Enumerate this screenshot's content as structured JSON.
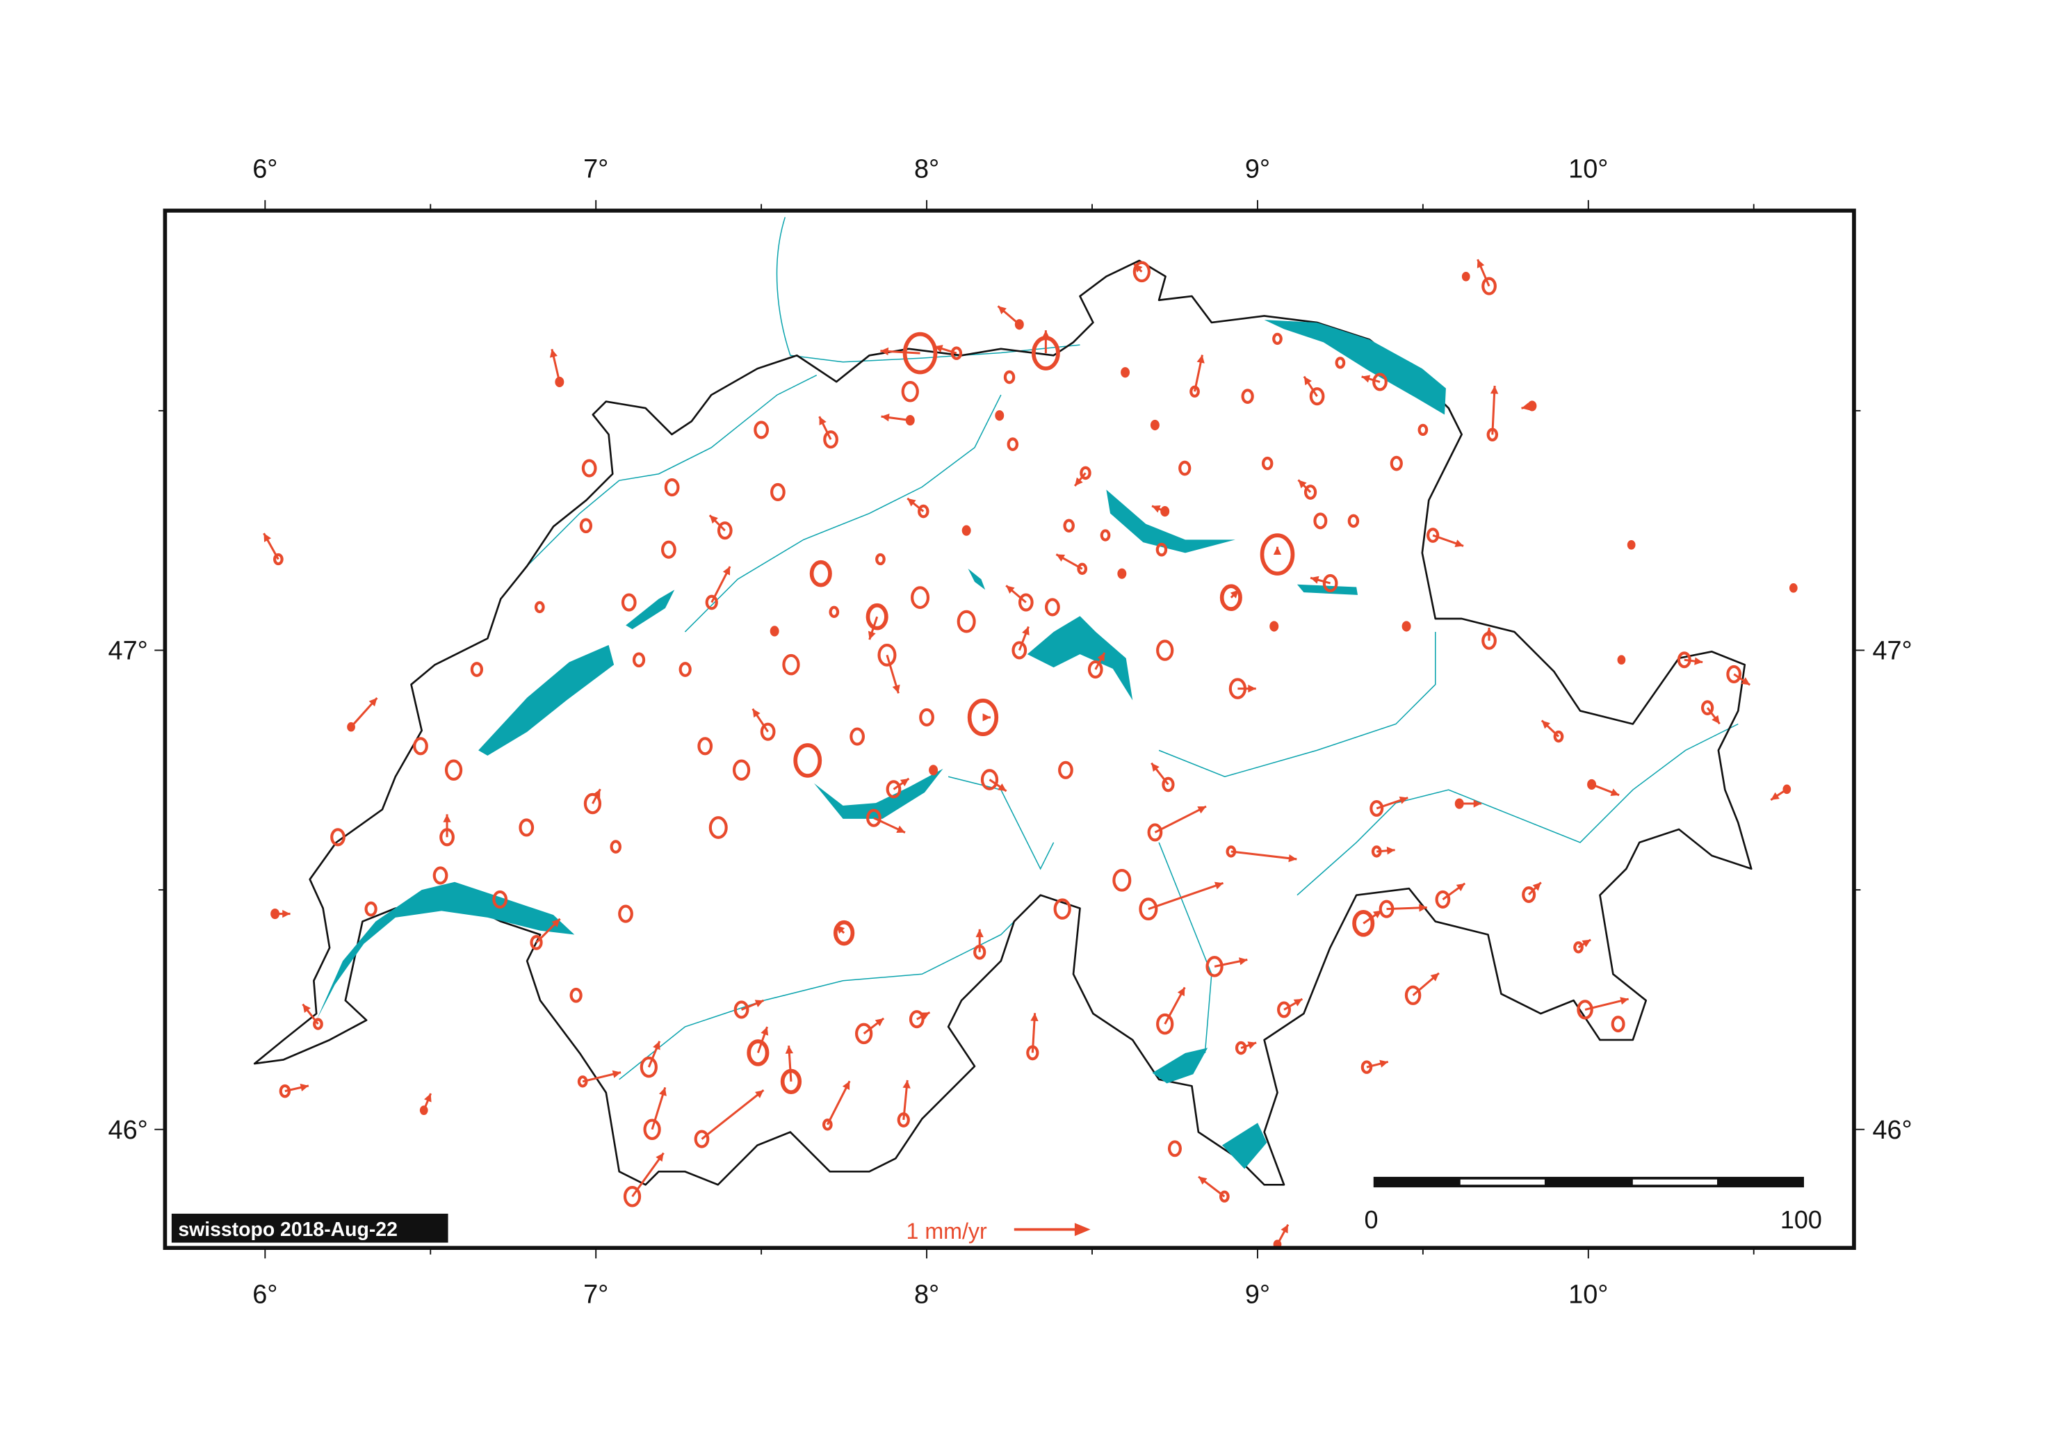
{
  "colors": {
    "station": "#e84a2c",
    "water": "#0aa3ad",
    "border": "#111111",
    "frame": "#111111"
  },
  "axes": {
    "lon_ticks": [
      {
        "value": 6,
        "label": "6°"
      },
      {
        "value": 7,
        "label": "7°"
      },
      {
        "value": 8,
        "label": "8°"
      },
      {
        "value": 9,
        "label": "9°"
      },
      {
        "value": 10,
        "label": "10°"
      }
    ],
    "lat_ticks": [
      {
        "value": 46,
        "label": "46°"
      },
      {
        "value": 47,
        "label": "47°"
      }
    ],
    "minor_lon": [
      5.5,
      6.5,
      7.5,
      8.5,
      9.5,
      10.5
    ],
    "minor_lat": [
      46.5,
      47.5
    ]
  },
  "credit": "swisstopo 2018-Aug-22",
  "legend": {
    "label": "1 mm/yr",
    "reference_velocity": 1
  },
  "scale_bar": {
    "start_label": "0",
    "end_label": "100",
    "unit_km": 100
  },
  "chart_data": {
    "type": "scatter",
    "description_type": "velocity vectors with error circles",
    "stations": [
      [
        7.98,
        47.62,
        -0.52,
        0.03,
        0.25
      ],
      [
        8.36,
        47.62,
        0,
        0.3,
        0.2
      ],
      [
        8.65,
        47.79,
        -0.1,
        0.1,
        0.12
      ],
      [
        9.7,
        47.76,
        -0.15,
        0.35,
        0.1
      ],
      [
        9.06,
        47.2,
        0,
        0.1,
        0.25
      ],
      [
        8.92,
        47.11,
        0.1,
        0.1,
        0.15
      ],
      [
        8.17,
        46.86,
        0.1,
        0,
        0.22
      ],
      [
        7.64,
        46.77,
        0,
        0,
        0.2
      ],
      [
        7.68,
        47.16,
        0,
        0,
        0.15
      ],
      [
        7.85,
        47.07,
        -0.1,
        -0.3,
        0.15
      ],
      [
        7.98,
        47.11,
        0,
        0,
        0.13
      ],
      [
        8.12,
        47.06,
        0,
        0,
        0.13
      ],
      [
        7.88,
        46.99,
        0.15,
        -0.5,
        0.13
      ],
      [
        7.59,
        46.97,
        0,
        0,
        0.12
      ],
      [
        7.27,
        46.96,
        0,
        0,
        0.08
      ],
      [
        7.13,
        46.98,
        0,
        0,
        0.08
      ],
      [
        7.1,
        47.1,
        0,
        0,
        0.1
      ],
      [
        7.22,
        47.21,
        0,
        0,
        0.1
      ],
      [
        7.39,
        47.25,
        -0.2,
        0.2,
        0.1
      ],
      [
        6.97,
        47.26,
        0,
        0,
        0.08
      ],
      [
        6.98,
        47.38,
        0,
        0,
        0.1
      ],
      [
        7.23,
        47.34,
        0,
        0,
        0.1
      ],
      [
        7.55,
        47.33,
        0,
        0,
        0.1
      ],
      [
        7.5,
        47.46,
        0,
        0,
        0.1
      ],
      [
        7.71,
        47.44,
        -0.15,
        0.3,
        0.1
      ],
      [
        6.89,
        47.56,
        -0.1,
        0.43,
        0.05
      ],
      [
        6.04,
        47.19,
        -0.19,
        0.34,
        0.06
      ],
      [
        6.26,
        46.84,
        0.34,
        0.38,
        0.04
      ],
      [
        6.64,
        46.96,
        0,
        0,
        0.08
      ],
      [
        6.47,
        46.8,
        0,
        0,
        0.1
      ],
      [
        6.57,
        46.75,
        0,
        0,
        0.12
      ],
      [
        6.22,
        46.61,
        0,
        0,
        0.1
      ],
      [
        6.55,
        46.61,
        0,
        0.3,
        0.1
      ],
      [
        6.79,
        46.63,
        0,
        0,
        0.1
      ],
      [
        6.99,
        46.68,
        0.1,
        0.19,
        0.12
      ],
      [
        7.06,
        46.59,
        0,
        0,
        0.07
      ],
      [
        7.37,
        46.63,
        0,
        0,
        0.13
      ],
      [
        7.33,
        46.8,
        0,
        0,
        0.1
      ],
      [
        7.44,
        46.75,
        0,
        0,
        0.12
      ],
      [
        7.52,
        46.83,
        -0.2,
        0.3,
        0.1
      ],
      [
        7.79,
        46.82,
        0,
        0,
        0.1
      ],
      [
        8.0,
        46.86,
        0,
        0,
        0.1
      ],
      [
        7.9,
        46.71,
        0.2,
        0.14,
        0.1
      ],
      [
        7.84,
        46.65,
        0.41,
        -0.19,
        0.1
      ],
      [
        8.19,
        46.73,
        0.22,
        -0.15,
        0.12
      ],
      [
        8.42,
        46.75,
        0,
        0,
        0.1
      ],
      [
        8.72,
        47.0,
        0,
        0,
        0.12
      ],
      [
        8.94,
        46.92,
        0.24,
        0,
        0.12
      ],
      [
        8.73,
        46.72,
        -0.22,
        0.28,
        0.08
      ],
      [
        8.69,
        46.62,
        0.67,
        0.34,
        0.1
      ],
      [
        8.92,
        46.58,
        0.86,
        -0.1,
        0.06
      ],
      [
        8.59,
        46.52,
        0,
        0,
        0.13
      ],
      [
        8.67,
        46.46,
        0.98,
        0.34,
        0.13
      ],
      [
        8.41,
        46.46,
        0,
        0,
        0.12
      ],
      [
        8.16,
        46.37,
        0,
        0.3,
        0.08
      ],
      [
        7.75,
        46.41,
        -0.1,
        0.1,
        0.14
      ],
      [
        7.49,
        46.16,
        0.12,
        0.34,
        0.15
      ],
      [
        7.59,
        46.1,
        -0.03,
        0.47,
        0.14
      ],
      [
        7.81,
        46.2,
        0.26,
        0.2,
        0.12
      ],
      [
        7.97,
        46.23,
        0.17,
        0.09,
        0.1
      ],
      [
        7.93,
        46.02,
        0.05,
        0.52,
        0.08
      ],
      [
        7.7,
        46.01,
        0.29,
        0.57,
        0.06
      ],
      [
        7.32,
        45.98,
        0.81,
        0.64,
        0.1
      ],
      [
        7.17,
        46.0,
        0.17,
        0.55,
        0.12
      ],
      [
        7.11,
        45.86,
        0.41,
        0.57,
        0.12
      ],
      [
        7.16,
        46.13,
        0.14,
        0.34,
        0.12
      ],
      [
        7.44,
        46.25,
        0.29,
        0.12,
        0.1
      ],
      [
        6.94,
        46.28,
        0,
        0,
        0.08
      ],
      [
        6.82,
        46.39,
        0.31,
        0.31,
        0.08
      ],
      [
        6.71,
        46.48,
        0,
        0,
        0.1
      ],
      [
        7.09,
        46.45,
        0,
        0,
        0.1
      ],
      [
        6.53,
        46.53,
        0,
        0,
        0.1
      ],
      [
        6.32,
        46.46,
        0,
        0,
        0.08
      ],
      [
        6.03,
        46.45,
        0.2,
        0,
        0.05
      ],
      [
        6.16,
        46.22,
        -0.2,
        0.26,
        0.06
      ],
      [
        6.06,
        46.08,
        0.31,
        0.07,
        0.07
      ],
      [
        6.96,
        46.1,
        0.5,
        0.12,
        0.06
      ],
      [
        8.32,
        46.16,
        0.03,
        0.52,
        0.08
      ],
      [
        8.72,
        46.22,
        0.26,
        0.48,
        0.12
      ],
      [
        8.87,
        46.34,
        0.43,
        0.09,
        0.12
      ],
      [
        8.95,
        46.17,
        0.2,
        0.07,
        0.07
      ],
      [
        8.75,
        45.96,
        0,
        0,
        0.09
      ],
      [
        8.9,
        45.86,
        -0.34,
        0.26,
        0.06
      ],
      [
        9.08,
        46.25,
        0.24,
        0.14,
        0.09
      ],
      [
        9.32,
        46.43,
        0.24,
        0.17,
        0.15
      ],
      [
        9.39,
        46.46,
        0.53,
        0.02,
        0.1
      ],
      [
        9.47,
        46.28,
        0.34,
        0.29,
        0.11
      ],
      [
        9.56,
        46.48,
        0.29,
        0.21,
        0.1
      ],
      [
        9.33,
        46.13,
        0.28,
        0.07,
        0.07
      ],
      [
        9.36,
        46.67,
        0.41,
        0.14,
        0.09
      ],
      [
        9.36,
        46.58,
        0.24,
        0.02,
        0.06
      ],
      [
        9.61,
        46.68,
        0.29,
        0,
        0.05
      ],
      [
        9.82,
        46.49,
        0.16,
        0.16,
        0.09
      ],
      [
        9.99,
        46.25,
        0.57,
        0.14,
        0.11
      ],
      [
        10.09,
        46.22,
        0,
        0,
        0.09
      ],
      [
        9.97,
        46.38,
        0.16,
        0.1,
        0.06
      ],
      [
        9.91,
        46.82,
        -0.22,
        0.21,
        0.06
      ],
      [
        10.01,
        46.72,
        0.36,
        -0.14,
        0.05
      ],
      [
        10.29,
        46.98,
        0.24,
        -0.03,
        0.09
      ],
      [
        10.44,
        46.95,
        0.21,
        -0.14,
        0.1
      ],
      [
        10.36,
        46.88,
        0.16,
        -0.21,
        0.08
      ],
      [
        10.6,
        46.71,
        -0.21,
        -0.14,
        0.04
      ],
      [
        10.1,
        46.98,
        0,
        0,
        0.04
      ],
      [
        9.7,
        47.02,
        0,
        0.17,
        0.1
      ],
      [
        9.53,
        47.24,
        0.4,
        -0.14,
        0.08
      ],
      [
        9.45,
        47.05,
        0,
        0,
        0.05
      ],
      [
        9.22,
        47.14,
        -0.26,
        0.07,
        0.1
      ],
      [
        9.05,
        47.05,
        0,
        0,
        0.05
      ],
      [
        9.29,
        47.27,
        0,
        0,
        0.07
      ],
      [
        9.19,
        47.27,
        0,
        0,
        0.09
      ],
      [
        9.16,
        47.33,
        -0.16,
        0.16,
        0.08
      ],
      [
        9.03,
        47.39,
        0,
        0,
        0.07
      ],
      [
        9.42,
        47.39,
        0,
        0,
        0.08
      ],
      [
        9.5,
        47.46,
        0,
        0,
        0.06
      ],
      [
        9.71,
        47.45,
        0.03,
        0.64,
        0.07
      ],
      [
        9.83,
        47.51,
        -0.14,
        -0.03,
        0.05
      ],
      [
        9.37,
        47.56,
        -0.24,
        0.07,
        0.1
      ],
      [
        9.18,
        47.53,
        -0.17,
        0.26,
        0.1
      ],
      [
        8.97,
        47.53,
        0,
        0,
        0.08
      ],
      [
        9.25,
        47.6,
        0,
        0,
        0.06
      ],
      [
        9.06,
        47.65,
        0,
        0,
        0.06
      ],
      [
        8.81,
        47.54,
        0.1,
        0.48,
        0.06
      ],
      [
        8.6,
        47.58,
        0,
        0,
        0.05
      ],
      [
        8.69,
        47.47,
        0,
        0,
        0.05
      ],
      [
        8.78,
        47.38,
        0,
        0,
        0.08
      ],
      [
        8.72,
        47.29,
        -0.17,
        0.07,
        0.05
      ],
      [
        8.71,
        47.21,
        0,
        0,
        0.07
      ],
      [
        8.59,
        47.16,
        0,
        0,
        0.05
      ],
      [
        8.54,
        47.24,
        0,
        0,
        0.06
      ],
      [
        8.43,
        47.26,
        0,
        0,
        0.07
      ],
      [
        8.47,
        47.17,
        -0.34,
        0.19,
        0.06
      ],
      [
        8.3,
        47.1,
        -0.26,
        0.22,
        0.1
      ],
      [
        8.38,
        47.09,
        0,
        0,
        0.1
      ],
      [
        8.28,
        47.0,
        0.12,
        0.31,
        0.1
      ],
      [
        8.51,
        46.96,
        0.12,
        0.22,
        0.1
      ],
      [
        8.09,
        47.62,
        -0.29,
        0.09,
        0.07
      ],
      [
        8.25,
        47.57,
        0,
        0,
        0.07
      ],
      [
        8.22,
        47.49,
        0,
        0,
        0.05
      ],
      [
        7.95,
        47.48,
        -0.38,
        0.05,
        0.05
      ],
      [
        8.26,
        47.43,
        0,
        0,
        0.07
      ],
      [
        8.48,
        47.37,
        -0.14,
        -0.17,
        0.07
      ],
      [
        7.99,
        47.29,
        -0.21,
        0.17,
        0.07
      ],
      [
        8.12,
        47.25,
        0,
        0,
        0.05
      ],
      [
        7.86,
        47.19,
        0,
        0,
        0.06
      ],
      [
        7.72,
        47.08,
        0,
        0,
        0.06
      ],
      [
        7.54,
        47.04,
        0,
        0,
        0.05
      ],
      [
        7.35,
        47.1,
        0.24,
        0.47,
        0.08
      ],
      [
        6.83,
        47.09,
        0,
        0,
        0.06
      ],
      [
        8.28,
        47.68,
        -0.28,
        0.24,
        0.05
      ],
      [
        7.95,
        47.54,
        0,
        0,
        0.12
      ],
      [
        10.13,
        47.22,
        0,
        0,
        0.03
      ],
      [
        10.62,
        47.13,
        0,
        0,
        0.03
      ],
      [
        9.63,
        47.78,
        0,
        0,
        0.04
      ],
      [
        9.06,
        45.76,
        0.14,
        0.26,
        0.03
      ],
      [
        6.48,
        46.04,
        0.09,
        0.22,
        0.03
      ],
      [
        8.02,
        46.75,
        0,
        0,
        0.05
      ]
    ],
    "station_fields": [
      "lon",
      "lat",
      "ve_mm_yr",
      "vn_mm_yr",
      "sigma_mm_yr"
    ],
    "xlim": [
      5.7,
      10.8
    ],
    "ylim": [
      45.75,
      47.92
    ]
  }
}
